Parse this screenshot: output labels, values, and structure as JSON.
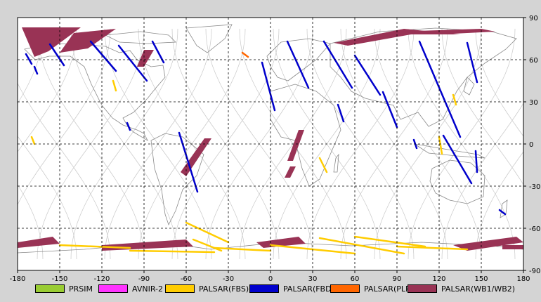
{
  "map": {
    "lon_ticks": [
      "-180",
      "-150",
      "-120",
      "-90",
      "-60",
      "-30",
      "0",
      "30",
      "60",
      "90",
      "120",
      "150",
      "180"
    ],
    "lat_ticks": [
      "90",
      "60",
      "30",
      "0",
      "-30",
      "-60",
      "-90"
    ],
    "lon_range": [
      -180,
      180
    ],
    "lat_range": [
      -90,
      90
    ],
    "grid": "dashed",
    "background_color": "#ffffff",
    "coastline_color": "#8a8a8a",
    "orbit_track_color": "#c8c8c8"
  },
  "legend": [
    {
      "label": "PRSIM",
      "color": "#99cc33"
    },
    {
      "label": "AVNIR-2",
      "color": "#ff33ff"
    },
    {
      "label": "PALSAR(FBS)",
      "color": "#ffcc00"
    },
    {
      "label": "PALSAR(FBD)",
      "color": "#0000cc"
    },
    {
      "label": "PALSAR(PLR)",
      "color": "#ff6600"
    },
    {
      "label": "PALSAR(WB1/WB2)",
      "color": "#993355"
    }
  ],
  "observations": {
    "wb": [
      [
        [
          -177,
          83
        ],
        [
          -135,
          83
        ],
        [
          -158,
          66
        ],
        [
          -168,
          62
        ]
      ],
      [
        [
          -140,
          79
        ],
        [
          -110,
          82
        ],
        [
          -130,
          68
        ],
        [
          -150,
          65
        ]
      ],
      [
        [
          -90,
          67
        ],
        [
          -83,
          67
        ],
        [
          -90,
          55
        ],
        [
          -95,
          55
        ]
      ],
      [
        [
          -47,
          4
        ],
        [
          -42,
          4
        ],
        [
          -60,
          -23
        ],
        [
          -64,
          -20
        ]
      ],
      [
        [
          20,
          10
        ],
        [
          24,
          10
        ],
        [
          16,
          -12
        ],
        [
          12,
          -12
        ]
      ],
      [
        [
          14,
          -16
        ],
        [
          18,
          -16
        ],
        [
          14,
          -24
        ],
        [
          10,
          -24
        ]
      ],
      [
        [
          45,
          72
        ],
        [
          95,
          82
        ],
        [
          135,
          78
        ],
        [
          100,
          78
        ],
        [
          55,
          70
        ]
      ],
      [
        [
          90,
          80
        ],
        [
          150,
          82
        ],
        [
          160,
          80
        ],
        [
          120,
          78
        ]
      ],
      [
        [
          -180,
          -70
        ],
        [
          -155,
          -66
        ],
        [
          -150,
          -71
        ],
        [
          -180,
          -74
        ]
      ],
      [
        [
          -120,
          -72
        ],
        [
          -60,
          -68
        ],
        [
          -55,
          -73
        ],
        [
          -120,
          -76
        ]
      ],
      [
        [
          -10,
          -70
        ],
        [
          20,
          -66
        ],
        [
          25,
          -71
        ],
        [
          -5,
          -74
        ]
      ],
      [
        [
          130,
          -72
        ],
        [
          175,
          -66
        ],
        [
          180,
          -70
        ],
        [
          140,
          -76
        ]
      ],
      [
        [
          165,
          -72
        ],
        [
          180,
          -72
        ],
        [
          180,
          -75
        ],
        [
          165,
          -75
        ]
      ]
    ],
    "fbd": [
      [
        [
          -174,
          64
        ],
        [
          -170,
          57
        ]
      ],
      [
        [
          -168,
          55
        ],
        [
          -166,
          50
        ]
      ],
      [
        [
          -157,
          71
        ],
        [
          -147,
          56
        ]
      ],
      [
        [
          -128,
          73
        ],
        [
          -110,
          52
        ]
      ],
      [
        [
          -108,
          70
        ],
        [
          -88,
          45
        ]
      ],
      [
        [
          -84,
          73
        ],
        [
          -76,
          58
        ]
      ],
      [
        [
          -65,
          8
        ],
        [
          -52,
          -34
        ]
      ],
      [
        [
          -102,
          15
        ],
        [
          -100,
          10
        ]
      ],
      [
        [
          -6,
          58
        ],
        [
          3,
          24
        ]
      ],
      [
        [
          12,
          73
        ],
        [
          27,
          40
        ]
      ],
      [
        [
          38,
          73
        ],
        [
          58,
          40
        ]
      ],
      [
        [
          60,
          63
        ],
        [
          78,
          35
        ]
      ],
      [
        [
          48,
          28
        ],
        [
          52,
          16
        ]
      ],
      [
        [
          106,
          73
        ],
        [
          135,
          5
        ]
      ],
      [
        [
          123,
          6
        ],
        [
          143,
          -28
        ]
      ],
      [
        [
          140,
          72
        ],
        [
          147,
          44
        ]
      ],
      [
        [
          146,
          -5
        ],
        [
          147,
          -20
        ]
      ],
      [
        [
          163,
          -47
        ],
        [
          167,
          -50
        ]
      ],
      [
        [
          80,
          37
        ],
        [
          90,
          12
        ]
      ],
      [
        [
          102,
          3
        ],
        [
          104,
          -3
        ]
      ]
    ],
    "fbs": [
      [
        [
          -150,
          -72
        ],
        [
          -100,
          -74
        ]
      ],
      [
        [
          -100,
          -76
        ],
        [
          -40,
          -77
        ]
      ],
      [
        [
          -60,
          -56
        ],
        [
          -30,
          -70
        ]
      ],
      [
        [
          -40,
          -74
        ],
        [
          0,
          -76
        ]
      ],
      [
        [
          0,
          -72
        ],
        [
          60,
          -78
        ]
      ],
      [
        [
          35,
          -67
        ],
        [
          95,
          -78
        ]
      ],
      [
        [
          60,
          -66
        ],
        [
          110,
          -73
        ]
      ],
      [
        [
          -170,
          5
        ],
        [
          -168,
          0
        ]
      ],
      [
        [
          -112,
          45
        ],
        [
          -110,
          38
        ]
      ],
      [
        [
          120,
          5
        ],
        [
          122,
          -7
        ]
      ],
      [
        [
          130,
          35
        ],
        [
          132,
          28
        ]
      ],
      [
        [
          -55,
          -68
        ],
        [
          -35,
          -76
        ]
      ],
      [
        [
          90,
          -73
        ],
        [
          140,
          -75
        ]
      ],
      [
        [
          35,
          -10
        ],
        [
          40,
          -20
        ]
      ]
    ],
    "plr": [
      [
        [
          -20,
          65
        ],
        [
          -16,
          62
        ]
      ]
    ]
  }
}
